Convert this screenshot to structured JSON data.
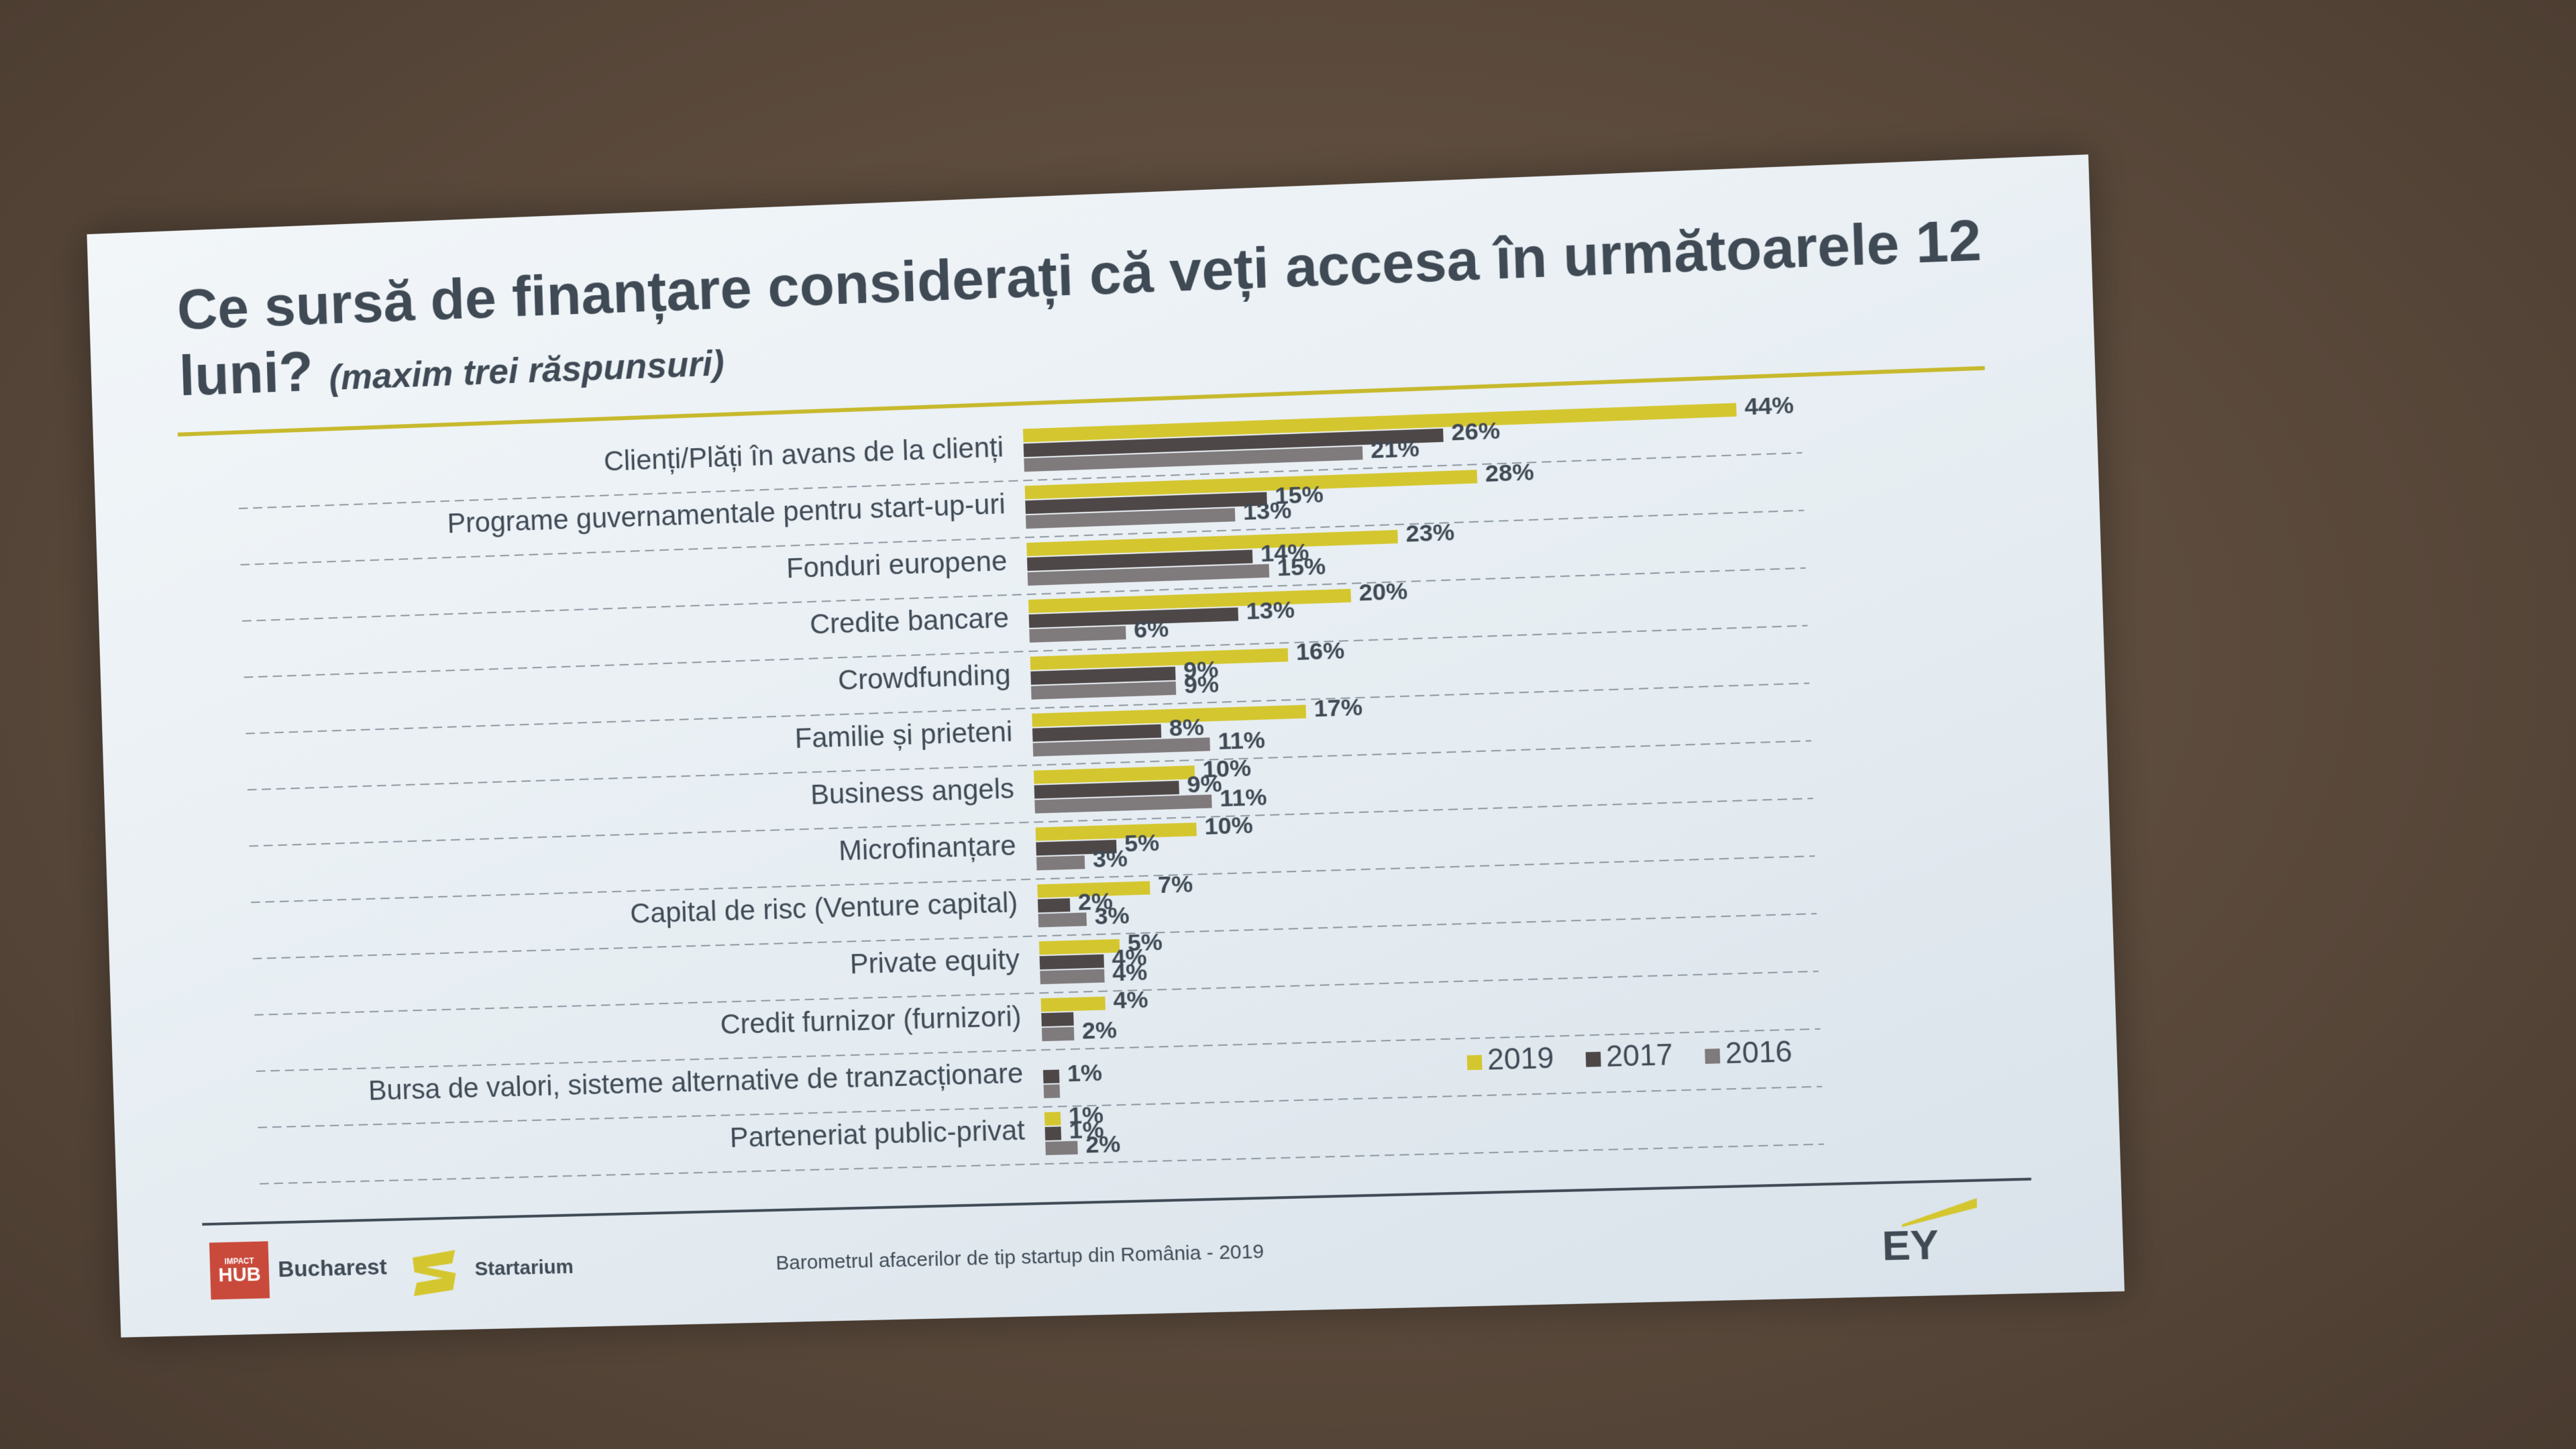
{
  "title": "Ce sursă de finanțare considerați că veți accesa în următoarele 12 luni?",
  "subtitle": "(maxim trei răspunsuri)",
  "footer": {
    "hub_top": "IMPACT",
    "hub_mid": "HUB",
    "hub_city": "Bucharest",
    "startarium": "Startarium",
    "source": "Barometrul afacerilor de tip startup din România - 2019",
    "ey": "EY"
  },
  "colors": {
    "2019": "#d4c62e",
    "2017": "#4e4747",
    "2016": "#7f7a7c",
    "text": "#3f4a55"
  },
  "chart_data": {
    "type": "bar",
    "orientation": "horizontal",
    "categories": [
      "Clienți/Plăți în avans de la clienți",
      "Programe guvernamentale pentru start-up-uri",
      "Fonduri europene",
      "Credite bancare",
      "Crowdfunding",
      "Familie și prieteni",
      "Business angels",
      "Microfinanțare",
      "Capital de risc (Venture capital)",
      "Private equity",
      "Credit furnizor (furnizori)",
      "Bursa de valori, sisteme alternative de tranzacționare",
      "Parteneriat public-privat"
    ],
    "series": [
      {
        "name": "2019",
        "values": [
          44,
          28,
          23,
          20,
          16,
          17,
          10,
          10,
          7,
          5,
          4,
          0,
          1
        ]
      },
      {
        "name": "2017",
        "values": [
          26,
          15,
          14,
          13,
          9,
          8,
          9,
          5,
          2,
          4,
          2,
          1,
          1
        ]
      },
      {
        "name": "2016",
        "values": [
          21,
          13,
          15,
          6,
          9,
          11,
          11,
          3,
          3,
          4,
          2,
          1,
          2
        ]
      }
    ],
    "value_labels": [
      [
        "44%",
        "26%",
        "21%"
      ],
      [
        "28%",
        "15%",
        "13%"
      ],
      [
        "23%",
        "14%",
        "15%"
      ],
      [
        "20%",
        "13%",
        "6%"
      ],
      [
        "16%",
        "9%",
        "9%"
      ],
      [
        "17%",
        "8%",
        "11%"
      ],
      [
        "10%",
        "9%",
        "11%"
      ],
      [
        "10%",
        "5%",
        "3%"
      ],
      [
        "7%",
        "2%",
        "3%"
      ],
      [
        "5%",
        "4%",
        "4%"
      ],
      [
        "4%",
        "",
        "2%"
      ],
      [
        "",
        "1%",
        ""
      ],
      [
        "1%",
        "1%",
        "2%"
      ]
    ],
    "legend_position": "bottom-right",
    "grid": "dashed-row-separators"
  }
}
